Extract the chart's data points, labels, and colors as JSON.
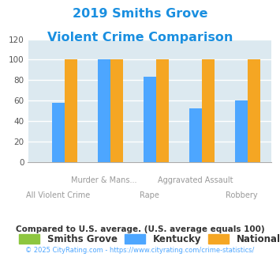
{
  "title_line1": "2019 Smiths Grove",
  "title_line2": "Violent Crime Comparison",
  "title_color": "#1a8fe0",
  "categories": [
    "All Violent Crime",
    "Murder & Mans...",
    "Rape",
    "Aggravated Assault",
    "Robbery"
  ],
  "cat_line1": [
    "",
    "Murder & Mans...",
    "",
    "Aggravated Assault",
    ""
  ],
  "cat_line2": [
    "All Violent Crime",
    "",
    "Rape",
    "",
    "Robbery"
  ],
  "smiths_grove": [
    0,
    0,
    0,
    0,
    0
  ],
  "kentucky": [
    58,
    100,
    83,
    52,
    60
  ],
  "national": [
    100,
    100,
    100,
    100,
    100
  ],
  "smiths_grove_color": "#8dc63f",
  "kentucky_color": "#4da6ff",
  "national_color": "#f5a623",
  "ylim": [
    0,
    120
  ],
  "yticks": [
    0,
    20,
    40,
    60,
    80,
    100,
    120
  ],
  "plot_bg": "#dce9f0",
  "grid_color": "#ffffff",
  "footnote1": "Compared to U.S. average. (U.S. average equals 100)",
  "footnote1_color": "#333333",
  "footnote2": "© 2025 CityRating.com - https://www.cityrating.com/crime-statistics/",
  "footnote2_color": "#4da6ff",
  "legend_labels": [
    "Smiths Grove",
    "Kentucky",
    "National"
  ],
  "bar_width": 0.28
}
